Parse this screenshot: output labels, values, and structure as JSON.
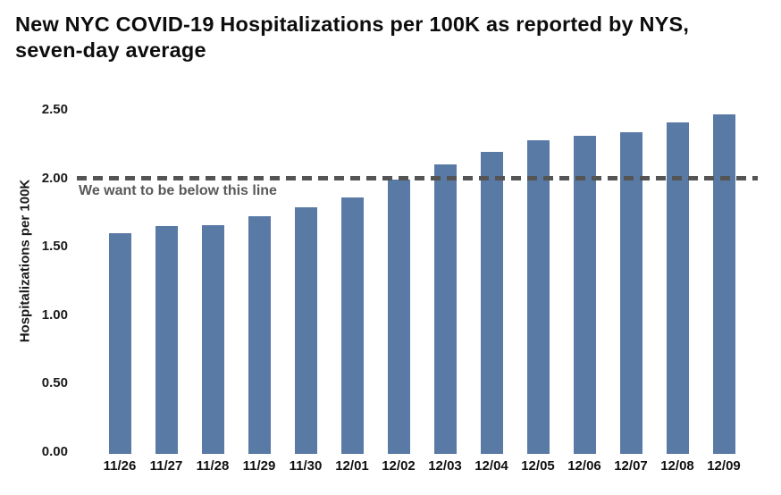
{
  "title_lines": [
    "New NYC COVID-19 Hospitalizations per 100K as reported by NYS,",
    "seven-day average"
  ],
  "colors": {
    "background": "#ffffff",
    "bar": "#5a7aa6",
    "target_line": "#545454",
    "annotation": "#595959",
    "title_text": "#0d0d0d",
    "axis_text": "#1a1a1a"
  },
  "chart_data": {
    "type": "bar",
    "title": "New NYC COVID-19 Hospitalizations per 100K as reported by NYS, seven-day average",
    "xlabel": "",
    "ylabel": "Hospitalizations per 100K",
    "categories": [
      "11/26",
      "11/27",
      "11/28",
      "11/29",
      "11/30",
      "12/01",
      "12/02",
      "12/03",
      "12/04",
      "12/05",
      "12/06",
      "12/07",
      "12/08",
      "12/09"
    ],
    "values": [
      1.6,
      1.65,
      1.66,
      1.72,
      1.79,
      1.86,
      1.99,
      2.1,
      2.19,
      2.28,
      2.31,
      2.34,
      2.41,
      2.47
    ],
    "ylim": [
      0,
      2.6
    ],
    "yticks": [
      0.0,
      0.5,
      1.0,
      1.5,
      2.0,
      2.5
    ],
    "ytick_labels": [
      "0.00",
      "0.50",
      "1.00",
      "1.50",
      "2.00",
      "2.50"
    ],
    "grid": false,
    "legend": "none",
    "reference_line": {
      "value": 2.0,
      "label": "We want to be below this line",
      "style": "dashed",
      "color": "#545454"
    }
  }
}
